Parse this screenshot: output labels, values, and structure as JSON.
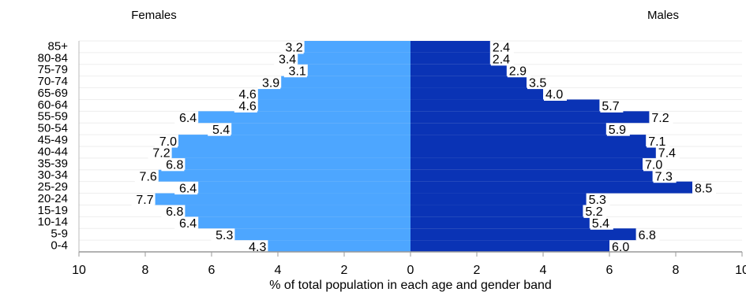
{
  "chart_data": {
    "type": "pyramid",
    "left_title": "Females",
    "right_title": "Males",
    "x_label": "% of total population in each age and gender band",
    "categories": [
      "85+",
      "80-84",
      "75-79",
      "70-74",
      "65-69",
      "60-64",
      "55-59",
      "50-54",
      "45-49",
      "40-44",
      "35-39",
      "30-34",
      "25-29",
      "20-24",
      "15-19",
      "10-14",
      "5-9",
      "0-4"
    ],
    "series": [
      {
        "name": "Females",
        "color": "#4da6ff",
        "values": [
          3.2,
          3.4,
          3.1,
          3.9,
          4.6,
          4.6,
          6.4,
          5.4,
          7.0,
          7.2,
          6.8,
          7.6,
          6.4,
          7.7,
          6.8,
          6.4,
          5.3,
          4.3
        ],
        "value_labels": [
          "3.2",
          "3.4",
          "3.1",
          "3.9",
          "4.6",
          "4.6",
          "6.4",
          "5.4",
          "7.0",
          "7.2",
          "6.8",
          "7.6",
          "6.4",
          "7.7",
          "6.8",
          "6.4",
          "5.3",
          "4.3"
        ]
      },
      {
        "name": "Males",
        "color": "#0a33b5",
        "values": [
          2.4,
          2.4,
          2.9,
          3.5,
          4.0,
          5.7,
          7.2,
          5.9,
          7.1,
          7.4,
          7.0,
          7.3,
          8.5,
          5.3,
          5.2,
          5.4,
          6.8,
          6.0
        ],
        "value_labels": [
          "2.4",
          "2.4",
          "2.9",
          "3.5",
          "4.0",
          "5.7",
          "7.2",
          "5.9",
          "7.1",
          "7.4",
          "7.0",
          "7.3",
          "8.5",
          "5.3",
          "5.2",
          "5.4",
          "6.8",
          "6.0"
        ]
      }
    ],
    "xlim": [
      0,
      10
    ],
    "xticks": [
      0,
      2,
      4,
      6,
      8,
      10
    ]
  }
}
